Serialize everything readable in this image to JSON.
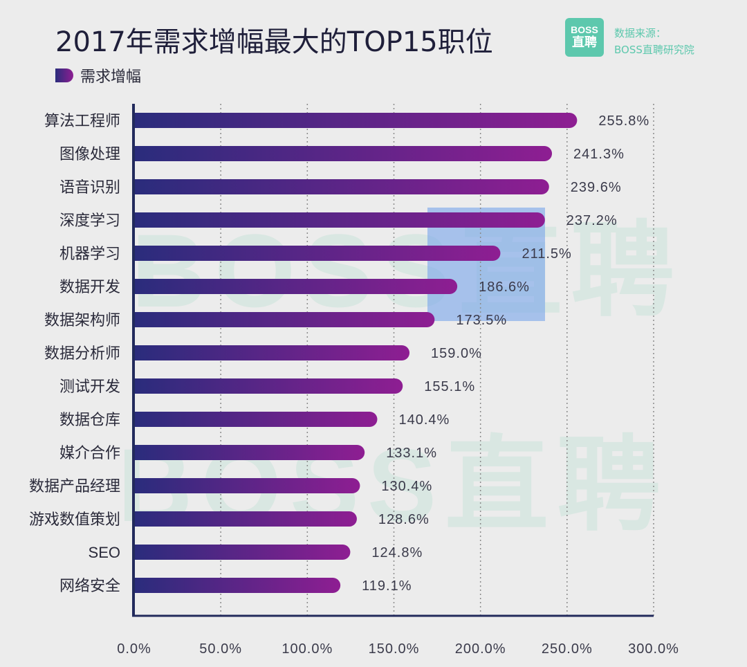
{
  "title": "2017年需求增幅最大的TOP15职位",
  "legend": {
    "label": "需求增幅"
  },
  "logo": {
    "line1": "BOSS",
    "line2": "直聘"
  },
  "source": {
    "line1": "数据来源：",
    "line2": "BOSS直聘研究院"
  },
  "watermark": {
    "line1": "BOSS直聘",
    "line2": "BOSS直聘"
  },
  "colors": {
    "bar_start": "#2a2c7c",
    "bar_end": "#8e1e92",
    "brand": "#5dc8ad",
    "highlight": "#78a5eb"
  },
  "chart_data": {
    "type": "bar",
    "orientation": "horizontal",
    "title": "2017年需求增幅最大的TOP15职位",
    "series": [
      {
        "name": "需求增幅"
      }
    ],
    "categories": [
      "算法工程师",
      "图像处理",
      "语音识别",
      "深度学习",
      "机器学习",
      "数据开发",
      "数据架构师",
      "数据分析师",
      "测试开发",
      "数据仓库",
      "媒介合作",
      "数据产品经理",
      "游戏数值策划",
      "SEO",
      "网络安全"
    ],
    "values": [
      255.8,
      241.3,
      239.6,
      237.2,
      211.5,
      186.6,
      173.5,
      159.0,
      155.1,
      140.4,
      133.1,
      130.4,
      128.6,
      124.8,
      119.1
    ],
    "value_labels": [
      "255.8%",
      "241.3%",
      "239.6%",
      "237.2%",
      "211.5%",
      "186.6%",
      "173.5%",
      "159.0%",
      "155.1%",
      "140.4%",
      "133.1%",
      "130.4%",
      "128.6%",
      "124.8%",
      "119.1%"
    ],
    "xlim": [
      0,
      300
    ],
    "xticks": [
      0,
      50,
      100,
      150,
      200,
      250,
      300
    ],
    "xtick_labels": [
      "0.0%",
      "50.0%",
      "100.0%",
      "150.0%",
      "200.0%",
      "250.0%",
      "300.0%"
    ],
    "grid": true,
    "legend_position": "top-left"
  }
}
